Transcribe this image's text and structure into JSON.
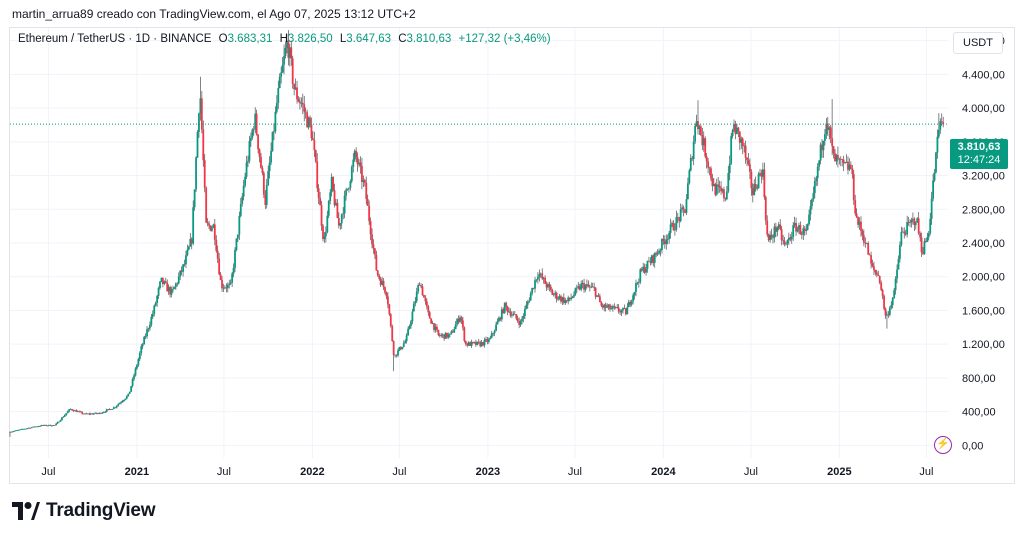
{
  "caption": "martin_arrua89 creado con TradingView.com, el Ago 07, 2025 13:12 UTC+2",
  "legend": {
    "symbol": "Ethereum / TetherUS · 1D · BINANCE",
    "open_label": "O",
    "open": "3.683,31",
    "high_label": "H",
    "high": "3.826,50",
    "low_label": "L",
    "low": "3.647,63",
    "close_label": "C",
    "close": "3.810,63",
    "change": "+127,32 (+3,46%)"
  },
  "currency_button": "USDT",
  "last_price": {
    "price": "3.810,63",
    "countdown": "12:47:24"
  },
  "brand": "TradingView",
  "icons": {
    "logo": "tradingview-logo-icon",
    "alert": "lightning-bolt-icon"
  },
  "colors": {
    "up": "#089981",
    "down": "#f23645",
    "wick": "#4b4f58",
    "grid": "#f0f3fa",
    "last_price_line": "#089981"
  },
  "chart_data": {
    "type": "candlestick",
    "title": "",
    "symbol": "ETH/USDT",
    "interval": "1D",
    "exchange": "BINANCE",
    "grid": true,
    "ylim": [
      -150,
      4950
    ],
    "xlim": [
      "2020-04-12",
      "2025-08-15"
    ],
    "y_ticks": [
      {
        "value": 0,
        "label": "0,00"
      },
      {
        "value": 400,
        "label": "400,00"
      },
      {
        "value": 800,
        "label": "800,00"
      },
      {
        "value": 1200,
        "label": "1.200,00"
      },
      {
        "value": 1600,
        "label": "1.600,00"
      },
      {
        "value": 2000,
        "label": "2.000,00"
      },
      {
        "value": 2400,
        "label": "2.400,00"
      },
      {
        "value": 2800,
        "label": "2.800,00"
      },
      {
        "value": 3200,
        "label": "3.200,00"
      },
      {
        "value": 3600,
        "label": "3.600,00"
      },
      {
        "value": 4000,
        "label": "4.000,00"
      },
      {
        "value": 4400,
        "label": "4.400,00"
      },
      {
        "value": 4800,
        "label": "4.800,00"
      }
    ],
    "x_ticks": [
      {
        "date": "2020-07-01",
        "label": "Jul",
        "bold": false
      },
      {
        "date": "2021-01-01",
        "label": "2021",
        "bold": true
      },
      {
        "date": "2021-07-01",
        "label": "Jul",
        "bold": false
      },
      {
        "date": "2022-01-01",
        "label": "2022",
        "bold": true
      },
      {
        "date": "2022-07-01",
        "label": "Jul",
        "bold": false
      },
      {
        "date": "2023-01-01",
        "label": "2023",
        "bold": true
      },
      {
        "date": "2023-07-01",
        "label": "Jul",
        "bold": false
      },
      {
        "date": "2024-01-01",
        "label": "2024",
        "bold": true
      },
      {
        "date": "2024-07-01",
        "label": "Jul",
        "bold": false
      },
      {
        "date": "2025-01-01",
        "label": "2025",
        "bold": true
      },
      {
        "date": "2025-07-01",
        "label": "Jul",
        "bold": false
      }
    ],
    "last_price": 3810.63,
    "close_path": [
      [
        "2020-04-12",
        160
      ],
      [
        "2020-05-15",
        200
      ],
      [
        "2020-06-15",
        235
      ],
      [
        "2020-07-15",
        240
      ],
      [
        "2020-08-15",
        430
      ],
      [
        "2020-09-15",
        370
      ],
      [
        "2020-10-15",
        380
      ],
      [
        "2020-11-15",
        450
      ],
      [
        "2020-12-15",
        600
      ],
      [
        "2021-01-10",
        1150
      ],
      [
        "2021-02-05",
        1600
      ],
      [
        "2021-02-20",
        1950
      ],
      [
        "2021-03-15",
        1800
      ],
      [
        "2021-04-10",
        2150
      ],
      [
        "2021-04-25",
        2450
      ],
      [
        "2021-05-12",
        4250
      ],
      [
        "2021-05-25",
        2600
      ],
      [
        "2021-06-10",
        2600
      ],
      [
        "2021-06-25",
        1900
      ],
      [
        "2021-07-15",
        1880
      ],
      [
        "2021-08-15",
        3250
      ],
      [
        "2021-09-03",
        3900
      ],
      [
        "2021-09-25",
        2900
      ],
      [
        "2021-10-20",
        4100
      ],
      [
        "2021-11-10",
        4800
      ],
      [
        "2021-11-25",
        4200
      ],
      [
        "2021-12-10",
        4050
      ],
      [
        "2021-12-31",
        3700
      ],
      [
        "2022-01-25",
        2400
      ],
      [
        "2022-02-10",
        3100
      ],
      [
        "2022-02-25",
        2600
      ],
      [
        "2022-03-31",
        3450
      ],
      [
        "2022-04-20",
        3050
      ],
      [
        "2022-05-15",
        2050
      ],
      [
        "2022-06-05",
        1800
      ],
      [
        "2022-06-20",
        1050
      ],
      [
        "2022-07-15",
        1250
      ],
      [
        "2022-08-12",
        1950
      ],
      [
        "2022-08-30",
        1550
      ],
      [
        "2022-09-20",
        1300
      ],
      [
        "2022-10-15",
        1300
      ],
      [
        "2022-11-05",
        1550
      ],
      [
        "2022-11-15",
        1200
      ],
      [
        "2022-12-15",
        1200
      ],
      [
        "2023-01-05",
        1250
      ],
      [
        "2023-02-05",
        1650
      ],
      [
        "2023-03-10",
        1450
      ],
      [
        "2023-04-15",
        2050
      ],
      [
        "2023-05-15",
        1800
      ],
      [
        "2023-06-15",
        1700
      ],
      [
        "2023-07-15",
        1900
      ],
      [
        "2023-08-10",
        1850
      ],
      [
        "2023-08-25",
        1650
      ],
      [
        "2023-09-15",
        1620
      ],
      [
        "2023-10-15",
        1580
      ],
      [
        "2023-10-30",
        1800
      ],
      [
        "2023-11-15",
        2050
      ],
      [
        "2023-12-15",
        2250
      ],
      [
        "2024-01-15",
        2550
      ],
      [
        "2024-02-15",
        2800
      ],
      [
        "2024-03-10",
        3900
      ],
      [
        "2024-04-01",
        3400
      ],
      [
        "2024-04-15",
        3050
      ],
      [
        "2024-05-10",
        2950
      ],
      [
        "2024-05-25",
        3800
      ],
      [
        "2024-06-15",
        3550
      ],
      [
        "2024-07-05",
        3000
      ],
      [
        "2024-07-25",
        3300
      ],
      [
        "2024-08-05",
        2400
      ],
      [
        "2024-08-25",
        2600
      ],
      [
        "2024-09-10",
        2350
      ],
      [
        "2024-10-01",
        2600
      ],
      [
        "2024-10-25",
        2500
      ],
      [
        "2024-11-15",
        3200
      ],
      [
        "2024-12-05",
        3900
      ],
      [
        "2024-12-20",
        3400
      ],
      [
        "2025-01-10",
        3300
      ],
      [
        "2025-01-25",
        3300
      ],
      [
        "2025-02-05",
        2700
      ],
      [
        "2025-02-25",
        2400
      ],
      [
        "2025-03-10",
        2100
      ],
      [
        "2025-03-25",
        2000
      ],
      [
        "2025-04-08",
        1500
      ],
      [
        "2025-04-25",
        1800
      ],
      [
        "2025-05-10",
        2500
      ],
      [
        "2025-05-25",
        2600
      ],
      [
        "2025-06-10",
        2700
      ],
      [
        "2025-06-22",
        2300
      ],
      [
        "2025-07-05",
        2500
      ],
      [
        "2025-07-15",
        3100
      ],
      [
        "2025-07-28",
        3800
      ],
      [
        "2025-08-07",
        3810.63
      ]
    ],
    "extremes": [
      {
        "date": "2020-04-12",
        "low": 100
      },
      {
        "date": "2021-05-12",
        "high": 4372
      },
      {
        "date": "2021-11-10",
        "high": 4868
      },
      {
        "date": "2022-06-18",
        "low": 880
      },
      {
        "date": "2024-03-12",
        "high": 4093
      },
      {
        "date": "2024-12-16",
        "high": 4107
      },
      {
        "date": "2025-04-09",
        "low": 1385
      },
      {
        "date": "2025-07-28",
        "high": 3941
      }
    ]
  }
}
